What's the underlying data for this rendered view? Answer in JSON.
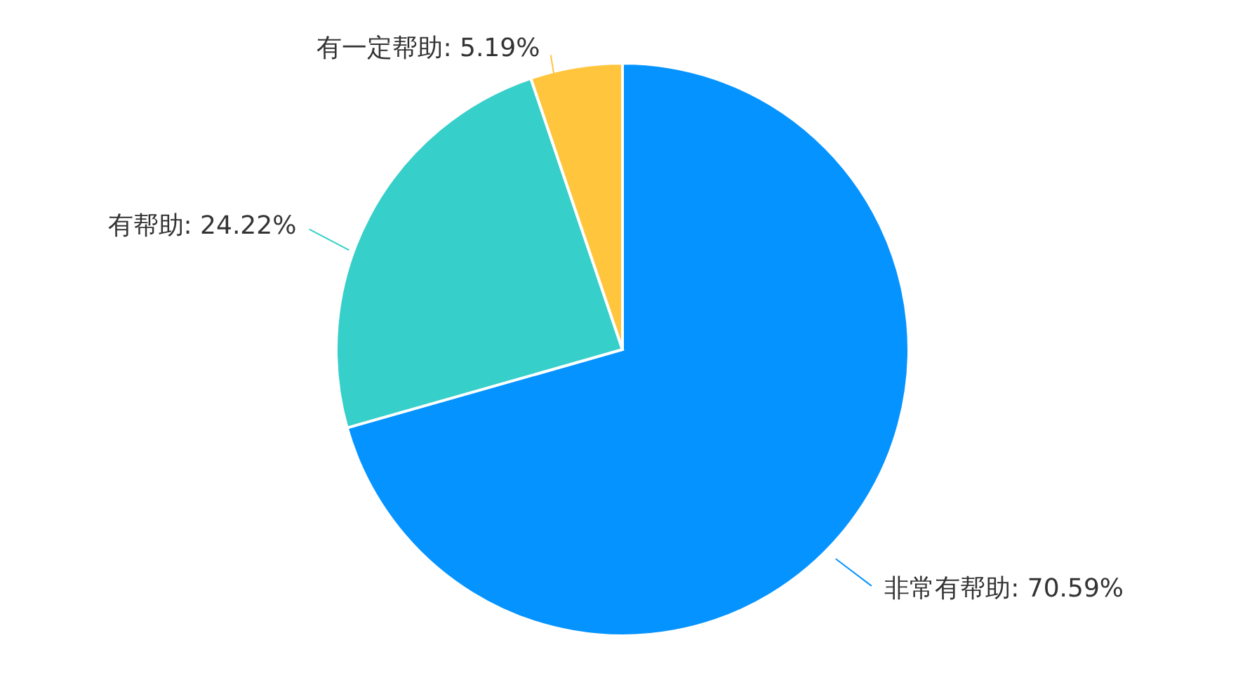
{
  "chart_data": {
    "type": "pie",
    "categories": [
      "非常有帮助",
      "有帮助",
      "有一定帮助"
    ],
    "values": [
      70.59,
      24.22,
      5.19
    ],
    "colors": [
      "#0593ff",
      "#36cfc9",
      "#ffc53d"
    ],
    "value_labels": [
      ": 70.59%",
      ": 24.22%",
      ": 5.19%"
    ]
  }
}
